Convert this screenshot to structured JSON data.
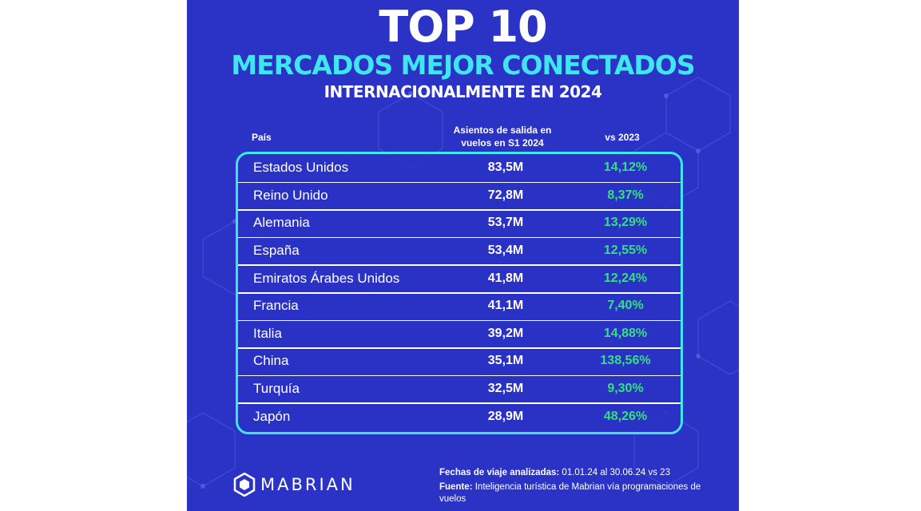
{
  "title": {
    "line1": "TOP 10",
    "line2": "MERCADOS MEJOR CONECTADOS",
    "line3": "INTERNACIONALMENTE EN 2024"
  },
  "table": {
    "headers": {
      "country": "País",
      "seats_line1": "Asientos de salida en",
      "seats_line2": "vuelos en S1 2024",
      "vs": "vs 2023"
    },
    "rows": [
      {
        "country": "Estados Unidos",
        "seats": "83,5M",
        "vs": "14,12%"
      },
      {
        "country": "Reino Unido",
        "seats": "72,8M",
        "vs": "8,37%"
      },
      {
        "country": "Alemania",
        "seats": "53,7M",
        "vs": "13,29%"
      },
      {
        "country": "España",
        "seats": "53,4M",
        "vs": "12,55%"
      },
      {
        "country": "Emiratos Árabes Unidos",
        "seats": "41,8M",
        "vs": "12,24%"
      },
      {
        "country": "Francia",
        "seats": "41,1M",
        "vs": "7,40%"
      },
      {
        "country": "Italia",
        "seats": "39,2M",
        "vs": "14,88%"
      },
      {
        "country": "China",
        "seats": "35,1M",
        "vs": "138,56%"
      },
      {
        "country": "Turquía",
        "seats": "32,5M",
        "vs": "9,30%"
      },
      {
        "country": "Japón",
        "seats": "28,9M",
        "vs": "48,26%"
      }
    ]
  },
  "logo": {
    "text": "MABRIAN",
    "icon": "hexagon-logo-icon"
  },
  "footer": {
    "dates_label": "Fechas de viaje analizadas:",
    "dates_value": "01.01.24 al 30.06.24 vs 23",
    "source_label": "Fuente:",
    "source_value": "Inteligencia turística de Mabrian vía programaciones de vuelos"
  },
  "colors": {
    "background": "#2a33c6",
    "accent_cyan": "#3fe6f0",
    "positive_green": "#35e07e",
    "text_white": "#ffffff"
  }
}
